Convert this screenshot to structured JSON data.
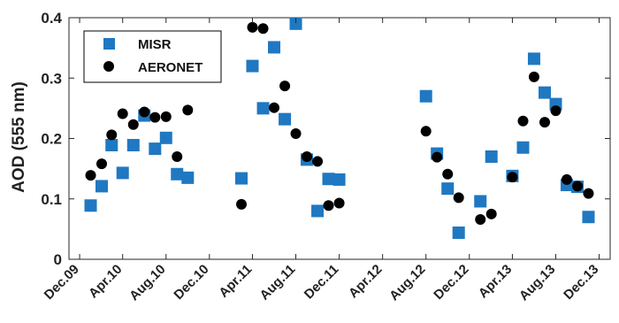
{
  "chart_data": {
    "type": "scatter",
    "title": "",
    "xlabel": "",
    "ylabel": "AOD (555 nm)",
    "xlim": [
      "2009-11-01",
      "2014-01-01"
    ],
    "ylim": [
      0,
      0.4
    ],
    "grid": false,
    "legend_position": "top-left",
    "x_ticks": [
      {
        "date": "2009-12-01",
        "label": "Dec.09"
      },
      {
        "date": "2010-04-01",
        "label": "Apr.10"
      },
      {
        "date": "2010-08-01",
        "label": "Aug.10"
      },
      {
        "date": "2010-12-01",
        "label": "Dec.10"
      },
      {
        "date": "2011-04-01",
        "label": "Apr.11"
      },
      {
        "date": "2011-08-01",
        "label": "Aug.11"
      },
      {
        "date": "2011-12-01",
        "label": "Dec.11"
      },
      {
        "date": "2012-04-01",
        "label": "Apr.12"
      },
      {
        "date": "2012-08-01",
        "label": "Aug.12"
      },
      {
        "date": "2012-12-01",
        "label": "Dec.12"
      },
      {
        "date": "2013-04-01",
        "label": "Apr.13"
      },
      {
        "date": "2013-08-01",
        "label": "Aug.13"
      },
      {
        "date": "2013-12-01",
        "label": "Dec.13"
      }
    ],
    "y_ticks": [
      {
        "value": 0,
        "label": "0"
      },
      {
        "value": 0.1,
        "label": "0.1"
      },
      {
        "value": 0.2,
        "label": "0.2"
      },
      {
        "value": 0.3,
        "label": "0.3"
      },
      {
        "value": 0.4,
        "label": "0.4"
      }
    ],
    "series": [
      {
        "name": "MISR",
        "marker": "square",
        "color": "#1f78c1",
        "points": [
          {
            "x": "2010-01-01",
            "y": 0.089
          },
          {
            "x": "2010-02-01",
            "y": 0.121
          },
          {
            "x": "2010-03-01",
            "y": 0.189
          },
          {
            "x": "2010-04-01",
            "y": 0.143
          },
          {
            "x": "2010-05-01",
            "y": 0.189
          },
          {
            "x": "2010-06-01",
            "y": 0.238
          },
          {
            "x": "2010-07-01",
            "y": 0.183
          },
          {
            "x": "2010-08-01",
            "y": 0.201
          },
          {
            "x": "2010-09-01",
            "y": 0.141
          },
          {
            "x": "2010-10-01",
            "y": 0.135
          },
          {
            "x": "2011-03-01",
            "y": 0.134
          },
          {
            "x": "2011-04-01",
            "y": 0.32
          },
          {
            "x": "2011-05-01",
            "y": 0.25
          },
          {
            "x": "2011-06-01",
            "y": 0.351
          },
          {
            "x": "2011-07-01",
            "y": 0.232
          },
          {
            "x": "2011-08-01",
            "y": 0.39
          },
          {
            "x": "2011-09-01",
            "y": 0.165
          },
          {
            "x": "2011-10-01",
            "y": 0.08
          },
          {
            "x": "2011-11-01",
            "y": 0.133
          },
          {
            "x": "2011-12-01",
            "y": 0.132
          },
          {
            "x": "2012-08-01",
            "y": 0.27
          },
          {
            "x": "2012-09-01",
            "y": 0.175
          },
          {
            "x": "2012-10-01",
            "y": 0.117
          },
          {
            "x": "2012-11-01",
            "y": 0.044
          },
          {
            "x": "2013-01-01",
            "y": 0.096
          },
          {
            "x": "2013-02-01",
            "y": 0.17
          },
          {
            "x": "2013-04-01",
            "y": 0.138
          },
          {
            "x": "2013-05-01",
            "y": 0.185
          },
          {
            "x": "2013-06-01",
            "y": 0.332
          },
          {
            "x": "2013-07-01",
            "y": 0.276
          },
          {
            "x": "2013-08-01",
            "y": 0.257
          },
          {
            "x": "2013-09-01",
            "y": 0.123
          },
          {
            "x": "2013-10-01",
            "y": 0.12
          },
          {
            "x": "2013-11-01",
            "y": 0.07
          }
        ]
      },
      {
        "name": "AERONET",
        "marker": "circle",
        "color": "#000000",
        "points": [
          {
            "x": "2010-01-01",
            "y": 0.139
          },
          {
            "x": "2010-02-01",
            "y": 0.158
          },
          {
            "x": "2010-03-01",
            "y": 0.206
          },
          {
            "x": "2010-04-01",
            "y": 0.241
          },
          {
            "x": "2010-05-01",
            "y": 0.223
          },
          {
            "x": "2010-06-01",
            "y": 0.244
          },
          {
            "x": "2010-07-01",
            "y": 0.235
          },
          {
            "x": "2010-08-01",
            "y": 0.236
          },
          {
            "x": "2010-09-01",
            "y": 0.17
          },
          {
            "x": "2010-10-01",
            "y": 0.247
          },
          {
            "x": "2011-03-01",
            "y": 0.091
          },
          {
            "x": "2011-04-01",
            "y": 0.384
          },
          {
            "x": "2011-05-01",
            "y": 0.382
          },
          {
            "x": "2011-06-01",
            "y": 0.251
          },
          {
            "x": "2011-07-01",
            "y": 0.287
          },
          {
            "x": "2011-08-01",
            "y": 0.208
          },
          {
            "x": "2011-09-01",
            "y": 0.17
          },
          {
            "x": "2011-10-01",
            "y": 0.162
          },
          {
            "x": "2011-11-01",
            "y": 0.089
          },
          {
            "x": "2011-12-01",
            "y": 0.093
          },
          {
            "x": "2012-08-01",
            "y": 0.212
          },
          {
            "x": "2012-09-01",
            "y": 0.169
          },
          {
            "x": "2012-10-01",
            "y": 0.141
          },
          {
            "x": "2012-11-01",
            "y": 0.102
          },
          {
            "x": "2013-01-01",
            "y": 0.066
          },
          {
            "x": "2013-02-01",
            "y": 0.075
          },
          {
            "x": "2013-04-01",
            "y": 0.136
          },
          {
            "x": "2013-05-01",
            "y": 0.229
          },
          {
            "x": "2013-06-01",
            "y": 0.302
          },
          {
            "x": "2013-07-01",
            "y": 0.227
          },
          {
            "x": "2013-08-01",
            "y": 0.246
          },
          {
            "x": "2013-09-01",
            "y": 0.132
          },
          {
            "x": "2013-10-01",
            "y": 0.121
          },
          {
            "x": "2013-11-01",
            "y": 0.109
          }
        ]
      }
    ]
  }
}
